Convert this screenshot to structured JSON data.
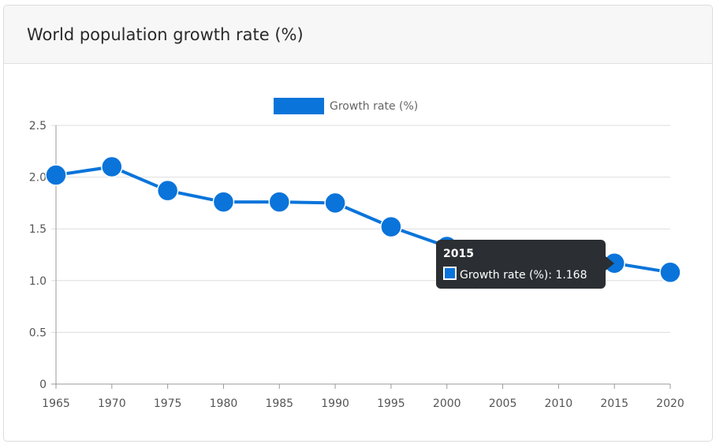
{
  "card": {
    "title": "World population growth rate (%)"
  },
  "colors": {
    "series": "#0a74da",
    "grid": "#dddddd",
    "axis": "#999999",
    "tooltip_bg": "#2b2f33"
  },
  "chart_data": {
    "type": "line",
    "title": "World population growth rate (%)",
    "x": [
      "1965",
      "1970",
      "1975",
      "1980",
      "1985",
      "1990",
      "1995",
      "2000",
      "2005",
      "2010",
      "2015",
      "2020"
    ],
    "series": [
      {
        "name": "Growth rate (%)",
        "values": [
          2.02,
          2.1,
          1.87,
          1.76,
          1.76,
          1.75,
          1.52,
          1.33,
          1.26,
          1.21,
          1.168,
          1.08
        ]
      }
    ],
    "ylim": [
      0,
      2.5
    ],
    "yticks": [
      "0",
      "0.5",
      "1.0",
      "1.5",
      "2.0",
      "2.5"
    ],
    "grid": true,
    "legend_position": "top-center",
    "tooltip": {
      "title": "2015",
      "label": "Growth rate (%): 1.168"
    }
  }
}
